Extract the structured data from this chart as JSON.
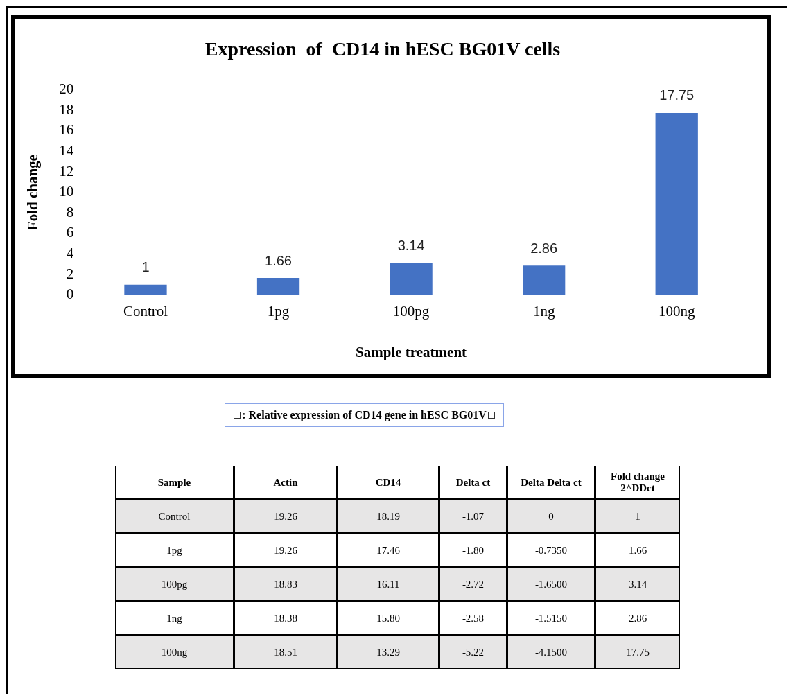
{
  "chart_data": [
    {
      "type": "bar",
      "title": "Expression  of  CD14 in hESC BG01V cells",
      "xlabel": "Sample treatment",
      "ylabel": "Fold change",
      "categories": [
        "Control",
        "1pg",
        "100pg",
        "1ng",
        "100ng"
      ],
      "values": [
        1,
        1.66,
        3.14,
        2.86,
        17.75
      ],
      "color": "#4472c4",
      "ylim": [
        0,
        20
      ],
      "yticks": [
        0,
        2,
        4,
        6,
        8,
        10,
        12,
        14,
        16,
        18,
        20
      ],
      "grid": false,
      "legend": false,
      "data_labels": true
    },
    {
      "type": "other",
      "title": ": Relative expression of CD14 gene in hESC BG01V",
      "categories": [
        "Sample",
        "Actin",
        "CD14",
        "Delta ct",
        "Delta Delta ct",
        "Fold change 2^DDct"
      ],
      "y_categories": [
        "Control",
        "1pg",
        "100pg",
        "1ng",
        "100ng"
      ],
      "cell_labels": [
        [
          "19.26",
          "18.19",
          "-1.07",
          "0",
          "1"
        ],
        [
          "19.26",
          "17.46",
          "-1.80",
          "-0.7350",
          "1.66"
        ],
        [
          "18.83",
          "16.11",
          "-2.72",
          "-1.6500",
          "3.14"
        ],
        [
          "18.38",
          "15.80",
          "-2.58",
          "-1.5150",
          "2.86"
        ],
        [
          "18.51",
          "13.29",
          "-5.22",
          "-4.1500",
          "17.75"
        ]
      ]
    }
  ]
}
